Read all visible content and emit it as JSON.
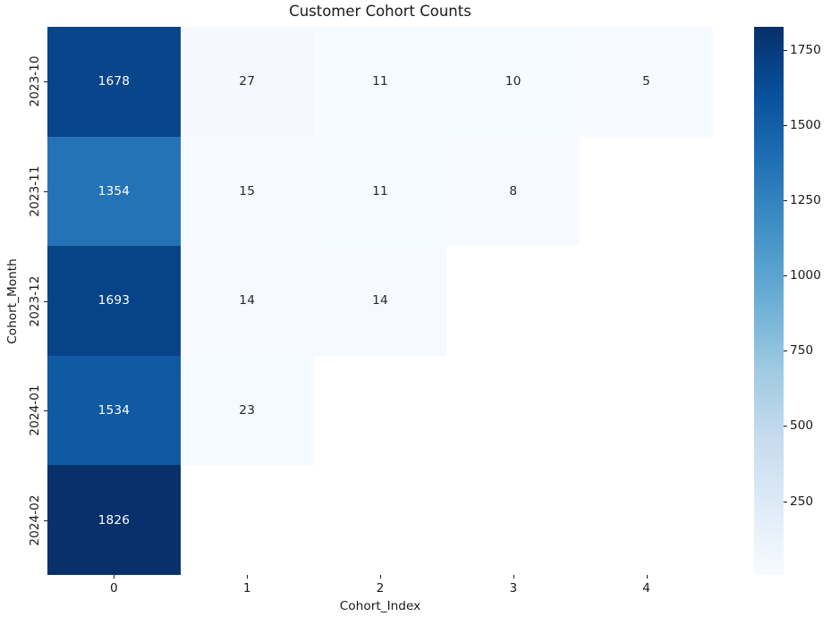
{
  "title": "Customer Cohort Counts",
  "chart_data": {
    "type": "heatmap",
    "title": "Customer Cohort Counts",
    "xlabel": "Cohort_Index",
    "ylabel": "Cohort_Month",
    "x_tick_labels": [
      "0",
      "1",
      "2",
      "3",
      "4"
    ],
    "y_tick_labels": [
      "2023-10",
      "2023-11",
      "2023-12",
      "2024-01",
      "2024-02"
    ],
    "rows": [
      [
        1678,
        27,
        11,
        10,
        5
      ],
      [
        1354,
        15,
        11,
        8,
        null
      ],
      [
        1693,
        14,
        14,
        null,
        null
      ],
      [
        1534,
        23,
        null,
        null,
        null
      ],
      [
        1826,
        null,
        null,
        null,
        null
      ]
    ],
    "vmin": 5,
    "vmax": 1826,
    "colormap": "Blues",
    "colormap_anchors": [
      "#f7fbff",
      "#deebf7",
      "#c6dbef",
      "#9ecae1",
      "#6baed6",
      "#4292c6",
      "#2171b5",
      "#08519c",
      "#08306b"
    ],
    "colorbar_ticks": [
      250,
      500,
      750,
      1000,
      1250,
      1500,
      1750
    ],
    "grid": false,
    "legend_position": "colorbar-right",
    "background": "#ffffff",
    "annotation_dark_text": "#262626",
    "annotation_light_text": "#ffffff",
    "missing_cell_color": "#ffffff"
  }
}
